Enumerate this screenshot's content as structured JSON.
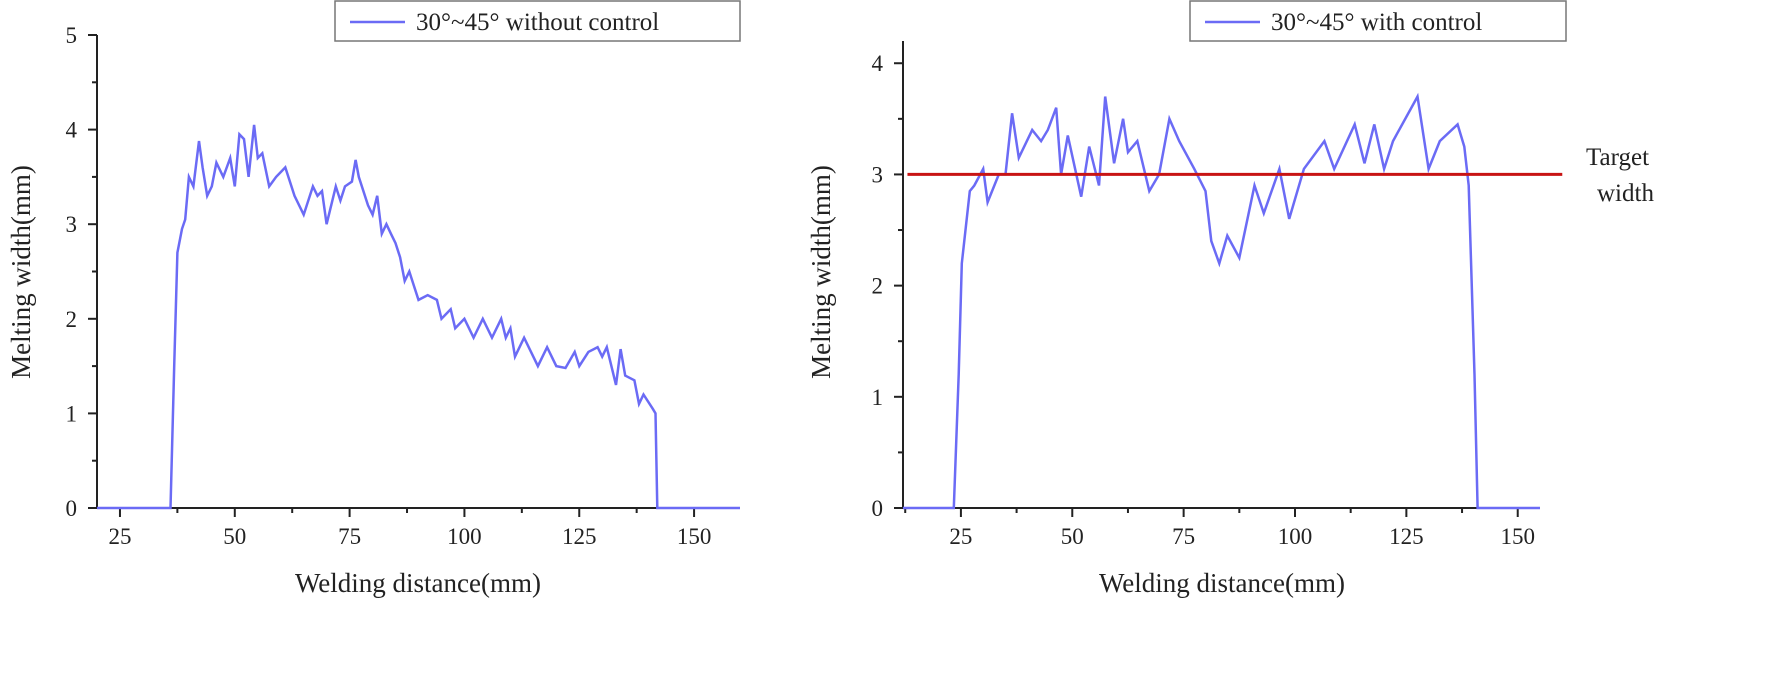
{
  "colors": {
    "series": "#6b6bf5",
    "target": "#c81414",
    "axis": "#222222"
  },
  "chart_data": [
    {
      "type": "line",
      "xlabel": "Welding distance(mm)",
      "ylabel": "Melting width(mm)",
      "xlim": [
        20,
        160
      ],
      "ylim": [
        0,
        5
      ],
      "xticks": [
        25,
        50,
        75,
        100,
        125,
        150
      ],
      "yticks": [
        0,
        1,
        2,
        3,
        4,
        5
      ],
      "grid": false,
      "legend_position": "top-right",
      "series": [
        {
          "name": "30°~45° without control",
          "x": [
            20,
            36,
            36.8,
            37.5,
            38.5,
            39.2,
            40,
            41,
            42.2,
            43,
            44,
            45,
            46,
            47.5,
            49,
            50,
            51,
            52,
            53,
            54.2,
            55,
            56,
            57.5,
            59,
            61,
            63,
            65,
            67,
            68,
            69,
            70,
            72,
            73,
            74,
            75.5,
            76.3,
            77,
            79,
            80,
            81,
            82,
            83,
            84,
            85,
            86,
            87,
            88,
            89,
            90,
            92,
            94,
            95,
            97,
            98,
            100,
            102,
            104,
            106,
            108,
            109,
            110,
            111,
            113,
            116,
            118,
            120,
            122,
            124,
            125,
            127,
            129,
            130,
            131,
            133,
            134,
            135,
            137,
            138,
            139,
            141,
            141.6,
            142,
            160
          ],
          "y": [
            0,
            0,
            1.5,
            2.7,
            2.95,
            3.05,
            3.5,
            3.4,
            3.88,
            3.6,
            3.3,
            3.4,
            3.65,
            3.5,
            3.7,
            3.4,
            3.95,
            3.9,
            3.5,
            4.05,
            3.7,
            3.75,
            3.4,
            3.5,
            3.6,
            3.3,
            3.1,
            3.4,
            3.3,
            3.35,
            3.0,
            3.4,
            3.25,
            3.4,
            3.45,
            3.68,
            3.5,
            3.2,
            3.1,
            3.3,
            2.9,
            3.0,
            2.9,
            2.8,
            2.65,
            2.4,
            2.5,
            2.35,
            2.2,
            2.25,
            2.2,
            2.0,
            2.1,
            1.9,
            2.0,
            1.8,
            2.0,
            1.8,
            2.0,
            1.8,
            1.9,
            1.6,
            1.8,
            1.5,
            1.7,
            1.5,
            1.48,
            1.65,
            1.5,
            1.65,
            1.7,
            1.6,
            1.7,
            1.3,
            1.68,
            1.4,
            1.35,
            1.1,
            1.2,
            1.05,
            1.0,
            0,
            0
          ]
        }
      ]
    },
    {
      "type": "line",
      "xlabel": "Welding distance(mm)",
      "ylabel": "Melting width(mm)",
      "xlim": [
        12,
        155
      ],
      "ylim": [
        0,
        4.2
      ],
      "xticks": [
        25,
        50,
        75,
        100,
        125,
        150
      ],
      "yticks": [
        0,
        1,
        2,
        3,
        4
      ],
      "grid": false,
      "legend_position": "top-right",
      "series": [
        {
          "name": "30°~45° with control",
          "x": [
            12,
            23.4,
            24.5,
            25.2,
            27,
            28,
            30,
            31,
            33.5,
            35,
            36.5,
            38,
            41,
            43,
            44.5,
            46.4,
            47.5,
            49,
            52,
            53.8,
            56,
            57.4,
            59.4,
            61.4,
            62.5,
            64.6,
            67.3,
            69.5,
            71.8,
            74,
            77.4,
            79.9,
            81.2,
            83,
            84.8,
            87.5,
            90.9,
            93,
            96.5,
            98.7,
            102,
            106.6,
            108.8,
            113.4,
            115.6,
            117.8,
            120,
            122,
            127.5,
            130,
            132.5,
            136.5,
            138,
            139,
            140.3,
            141,
            155
          ],
          "y": [
            0,
            0,
            1.2,
            2.2,
            2.85,
            2.9,
            3.05,
            2.75,
            3.0,
            3.0,
            3.55,
            3.15,
            3.4,
            3.3,
            3.4,
            3.6,
            3.0,
            3.35,
            2.8,
            3.25,
            2.9,
            3.7,
            3.1,
            3.5,
            3.2,
            3.3,
            2.85,
            3.0,
            3.5,
            3.3,
            3.05,
            2.85,
            2.4,
            2.2,
            2.45,
            2.25,
            2.9,
            2.65,
            3.05,
            2.6,
            3.05,
            3.3,
            3.05,
            3.45,
            3.1,
            3.45,
            3.05,
            3.3,
            3.7,
            3.05,
            3.3,
            3.45,
            3.25,
            2.9,
            1.2,
            0,
            0
          ]
        }
      ],
      "reference_line": {
        "y": 3.0,
        "x": [
          13,
          160
        ],
        "label_line1": "Target",
        "label_line2": "width"
      }
    }
  ]
}
